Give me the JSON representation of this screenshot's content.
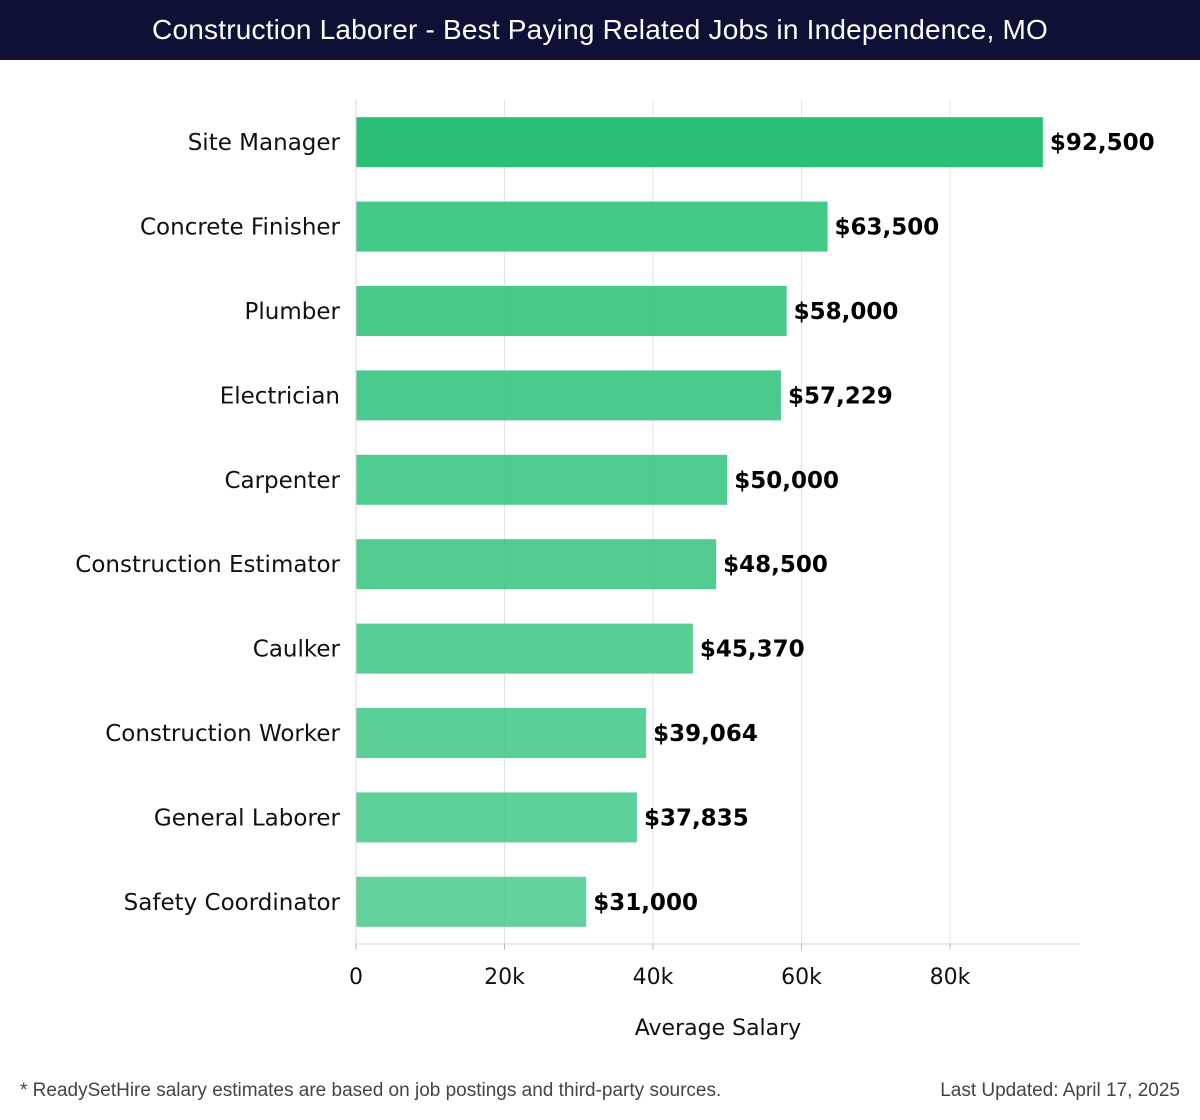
{
  "header": {
    "title": "Construction Laborer - Best Paying Related Jobs in Independence, MO"
  },
  "chart_data": {
    "type": "bar",
    "orientation": "horizontal",
    "title": "Construction Laborer - Best Paying Related Jobs in Independence, MO",
    "xlabel": "Average Salary",
    "ylabel": "",
    "xlim": [
      0,
      97500
    ],
    "ticks": [
      0,
      20000,
      40000,
      60000,
      80000
    ],
    "tick_labels": [
      "0",
      "20k",
      "40k",
      "60k",
      "80k"
    ],
    "grid": true,
    "categories": [
      "Site Manager",
      "Concrete Finisher",
      "Plumber",
      "Electrician",
      "Carpenter",
      "Construction Estimator",
      "Caulker",
      "Construction Worker",
      "General Laborer",
      "Safety Coordinator"
    ],
    "values": [
      92500,
      63500,
      58000,
      57229,
      50000,
      48500,
      45370,
      39064,
      37835,
      31000
    ],
    "value_labels": [
      "$92,500",
      "$63,500",
      "$58,000",
      "$57,229",
      "$50,000",
      "$48,500",
      "$45,370",
      "$39,064",
      "$37,835",
      "$31,000"
    ],
    "colors": {
      "top_bar": "#2abf77",
      "bars": "#3fc785",
      "grid": "#e2e2e2",
      "axis": "#d5d5d5"
    }
  },
  "footer": {
    "note": "* ReadySetHire salary estimates are based on job postings and third-party sources.",
    "updated": "Last Updated: April 17, 2025"
  }
}
